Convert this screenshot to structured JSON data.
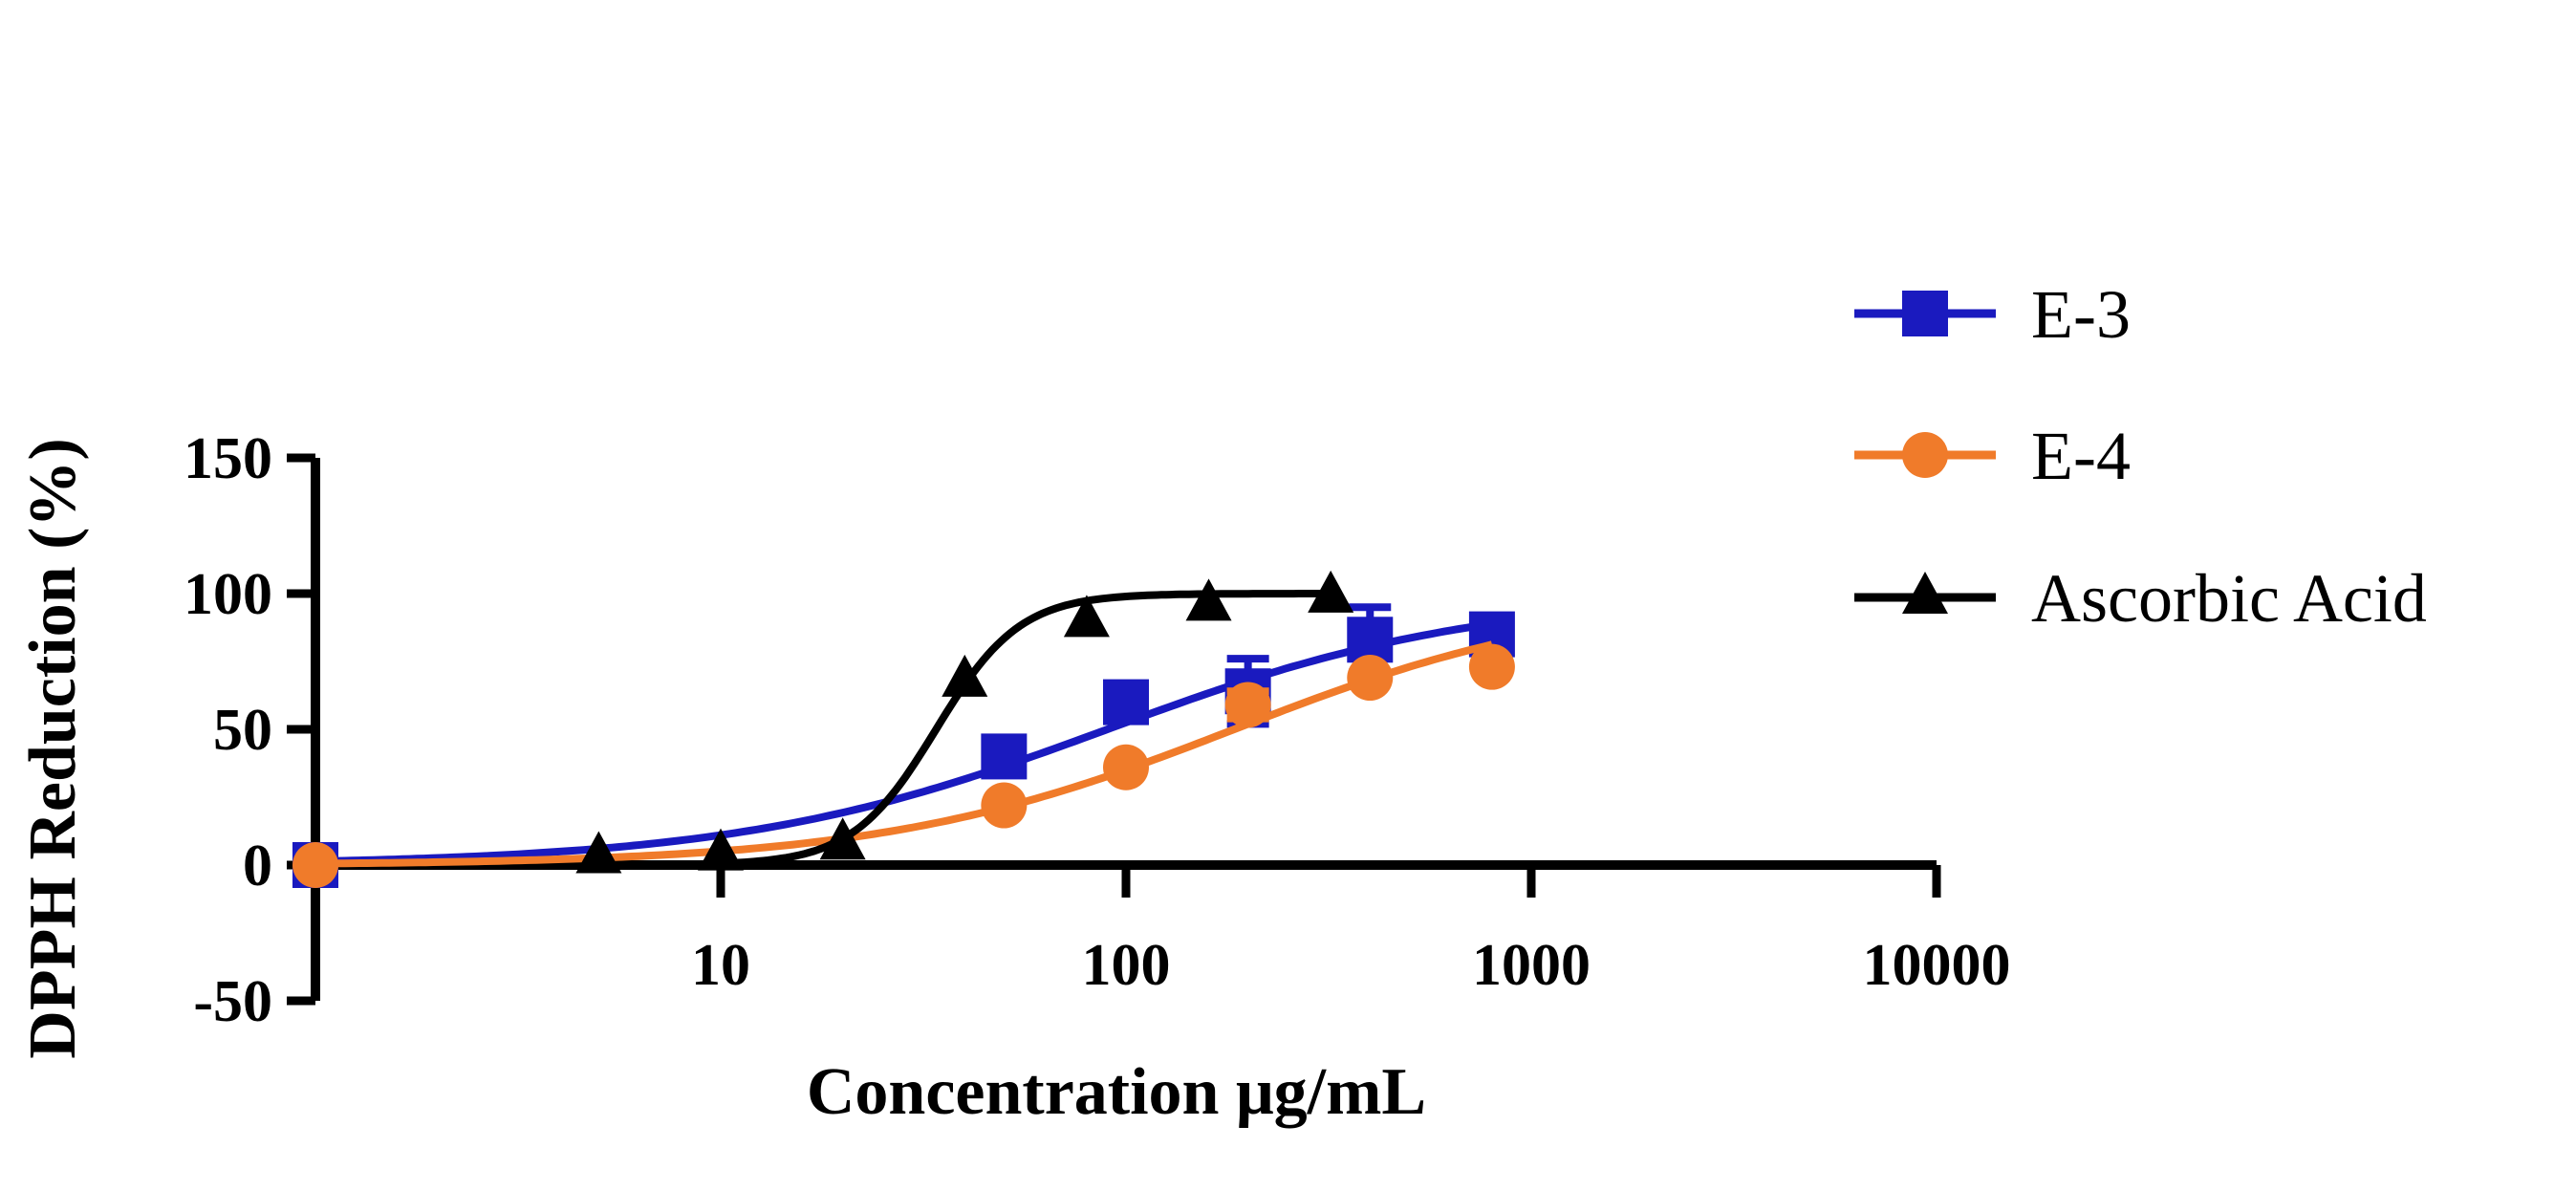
{
  "chart_data": {
    "type": "scatter",
    "title": "",
    "xlabel": "Concentration μg/mL",
    "ylabel": "DPPH Reduction (%)",
    "x_scale": "log",
    "xlim": [
      1,
      10000
    ],
    "ylim": [
      -50,
      150
    ],
    "x_ticks": [
      10,
      100,
      1000,
      10000
    ],
    "x_tick_labels": [
      "10",
      "100",
      "1000",
      "10000"
    ],
    "y_ticks": [
      -50,
      0,
      50,
      100,
      150
    ],
    "y_tick_labels": [
      "-50",
      "0",
      "50",
      "100",
      "150"
    ],
    "grid": false,
    "legend_position": "right",
    "series": [
      {
        "name": "E-3",
        "color": "#1a1abf",
        "marker": "square",
        "points": [
          {
            "x": 1,
            "y": 0,
            "err": 0
          },
          {
            "x": 50,
            "y": 40,
            "err": 6
          },
          {
            "x": 100,
            "y": 60,
            "err": 4
          },
          {
            "x": 200,
            "y": 64,
            "err": 12
          },
          {
            "x": 400,
            "y": 83,
            "err": 12
          },
          {
            "x": 800,
            "y": 85,
            "err": 0
          }
        ],
        "fit": {
          "bottom": 0,
          "top": 100,
          "ec50": 90,
          "hill": 0.95,
          "x_from": 1,
          "x_to": 720
        }
      },
      {
        "name": "E-4",
        "color": "#f07b2a",
        "marker": "circle",
        "points": [
          {
            "x": 1,
            "y": 0,
            "err": 0
          },
          {
            "x": 50,
            "y": 22,
            "err": 0
          },
          {
            "x": 100,
            "y": 36,
            "err": 0
          },
          {
            "x": 200,
            "y": 59,
            "err": 5
          },
          {
            "x": 400,
            "y": 69,
            "err": 0
          },
          {
            "x": 800,
            "y": 73,
            "err": 0
          }
        ],
        "fit": {
          "bottom": 0,
          "top": 100,
          "ec50": 185,
          "hill": 1.0,
          "x_from": 1,
          "x_to": 800
        }
      },
      {
        "name": "Ascorbic Acid",
        "color": "#000000",
        "marker": "triangle",
        "points": [
          {
            "x": 5,
            "y": 3,
            "err": 0
          },
          {
            "x": 10,
            "y": 4,
            "err": 0
          },
          {
            "x": 20,
            "y": 8,
            "err": 0
          },
          {
            "x": 40,
            "y": 68,
            "err": 0
          },
          {
            "x": 80,
            "y": 90,
            "err": 0
          },
          {
            "x": 160,
            "y": 96,
            "err": 0
          },
          {
            "x": 320,
            "y": 99,
            "err": 0
          }
        ],
        "fit": {
          "bottom": 0,
          "top": 100,
          "ec50": 34,
          "hill": 4.2,
          "x_from": 5,
          "x_to": 320
        }
      }
    ]
  }
}
